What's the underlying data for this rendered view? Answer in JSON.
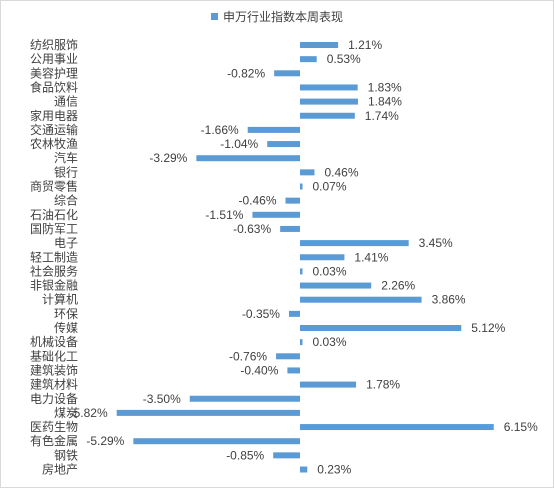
{
  "chart_data": {
    "type": "bar",
    "orientation": "horizontal",
    "title": "",
    "legend": {
      "position": "top"
    },
    "grid": false,
    "series": [
      {
        "name": "申万行业指数本周表现",
        "color": "#5b9bd5"
      }
    ],
    "categories": [
      "纺织服饰",
      "公用事业",
      "美容护理",
      "食品饮料",
      "通信",
      "家用电器",
      "交通运输",
      "农林牧渔",
      "汽车",
      "银行",
      "商贸零售",
      "综合",
      "石油石化",
      "国防军工",
      "电子",
      "轻工制造",
      "社会服务",
      "非银金融",
      "计算机",
      "环保",
      "传媒",
      "机械设备",
      "基础化工",
      "建筑装饰",
      "建筑材料",
      "电力设备",
      "煤炭",
      "医药生物",
      "有色金属",
      "钢铁",
      "房地产"
    ],
    "values": [
      1.21,
      0.53,
      -0.82,
      1.83,
      1.84,
      1.74,
      -1.66,
      -1.04,
      -3.29,
      0.46,
      0.07,
      -0.46,
      -1.51,
      -0.63,
      3.45,
      1.41,
      0.03,
      2.26,
      3.86,
      -0.35,
      5.12,
      0.03,
      -0.76,
      -0.4,
      1.78,
      -3.5,
      -5.82,
      6.15,
      -5.29,
      -0.85,
      0.23
    ],
    "value_labels": [
      "1.21%",
      "0.53%",
      "-0.82%",
      "1.83%",
      "1.84%",
      "1.74%",
      "-1.66%",
      "-1.04%",
      "-3.29%",
      "0.46%",
      "0.07%",
      "-0.46%",
      "-1.51%",
      "-0.63%",
      "3.45%",
      "1.41%",
      "0.03%",
      "2.26%",
      "3.86%",
      "-0.35%",
      "5.12%",
      "0.03%",
      "-0.76%",
      "-0.40%",
      "1.78%",
      "-3.50%",
      "-5.82%",
      "6.15%",
      "-5.29%",
      "-0.85%",
      "0.23%"
    ],
    "xlim": [
      -7,
      7
    ],
    "unit": "%"
  }
}
